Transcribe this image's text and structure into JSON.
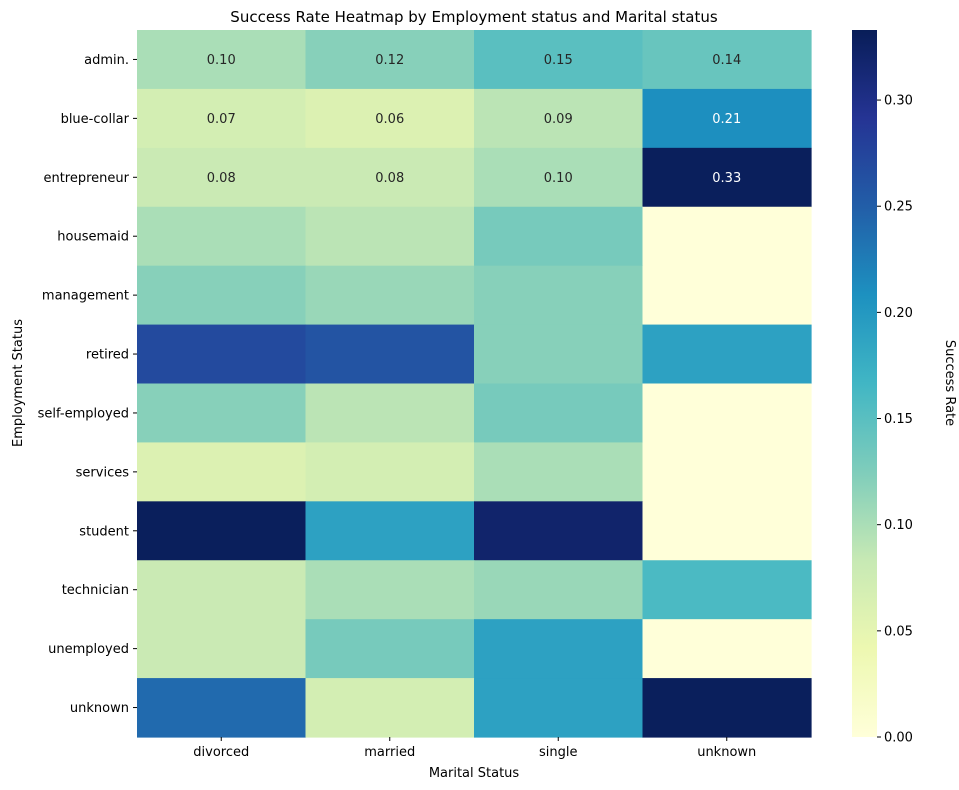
{
  "chart_data": {
    "type": "heatmap",
    "title": "Success Rate Heatmap by Employment status and Marital status",
    "xlabel": "Marital Status",
    "ylabel": "Employment Status",
    "x_categories": [
      "divorced",
      "married",
      "single",
      "unknown"
    ],
    "y_categories": [
      "admin.",
      "blue-collar",
      "entrepreneur",
      "housemaid",
      "management",
      "retired",
      "self-employed",
      "services",
      "student",
      "technician",
      "unemployed",
      "unknown"
    ],
    "values": [
      [
        0.1,
        0.12,
        0.15,
        0.14
      ],
      [
        0.07,
        0.06,
        0.09,
        0.21
      ],
      [
        0.08,
        0.08,
        0.1,
        0.33
      ],
      [
        0.1,
        0.09,
        0.13,
        0.0
      ],
      [
        0.12,
        0.11,
        0.12,
        0.0
      ],
      [
        0.27,
        0.26,
        0.12,
        0.19
      ],
      [
        0.12,
        0.09,
        0.13,
        0.0
      ],
      [
        0.06,
        0.07,
        0.1,
        0.0
      ],
      [
        0.33,
        0.19,
        0.32,
        0.0
      ],
      [
        0.08,
        0.1,
        0.11,
        0.16
      ],
      [
        0.08,
        0.13,
        0.19,
        0.0
      ],
      [
        0.24,
        0.07,
        0.19,
        0.33
      ]
    ],
    "annotated_rows": [
      0,
      1,
      2
    ],
    "vmin": 0.0,
    "vmax": 0.333,
    "colormap": "YlGnBu",
    "colorbar": {
      "label": "Success Rate",
      "ticks": [
        "0.00",
        "0.05",
        "0.10",
        "0.15",
        "0.20",
        "0.25",
        "0.30"
      ],
      "tick_values": [
        0.0,
        0.05,
        0.1,
        0.15,
        0.2,
        0.25,
        0.3
      ]
    }
  }
}
